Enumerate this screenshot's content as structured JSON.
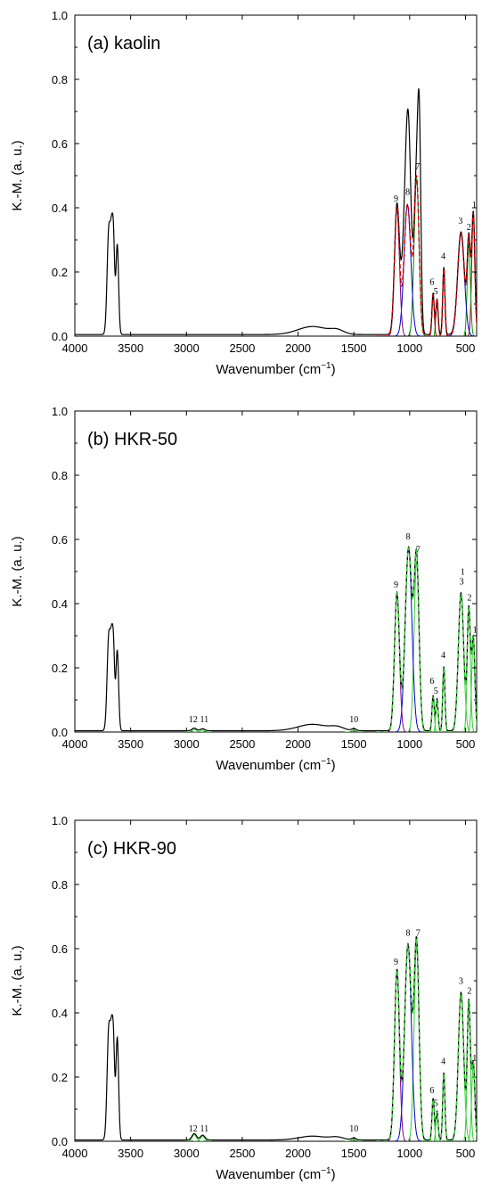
{
  "chart_data": [
    {
      "type": "line",
      "title": "(a) kaolin",
      "xlabel": "Wavenumber (cm",
      "xlabel_sup": "−1",
      "xlabel_end": ")",
      "ylabel": "K.-M. (a. u.)",
      "xlim": [
        4000,
        400
      ],
      "ylim": [
        0,
        1.0
      ],
      "xticks": [
        4000,
        3500,
        3000,
        2500,
        2000,
        1500,
        1000,
        500
      ],
      "yticks": [
        "0.0",
        "0.2",
        "0.4",
        "0.6",
        "0.8",
        "1.0"
      ],
      "grid": false,
      "measured": {
        "name": "",
        "color": "#000000",
        "baseline": 0.005,
        "peaks": [
          [
            3696,
            0.32,
            15
          ],
          [
            3669,
            0.26,
            12
          ],
          [
            3652,
            0.22,
            10
          ],
          [
            3620,
            0.28,
            12
          ],
          [
            1870,
            0.025,
            130
          ],
          [
            1650,
            0.012,
            60
          ],
          [
            1114,
            0.4,
            22
          ],
          [
            1032,
            0.41,
            30
          ],
          [
            1008,
            0.37,
            22
          ],
          [
            938,
            0.49,
            22
          ],
          [
            913,
            0.47,
            14
          ],
          [
            790,
            0.13,
            10
          ],
          [
            755,
            0.11,
            10
          ],
          [
            694,
            0.21,
            10
          ],
          [
            540,
            0.32,
            30
          ],
          [
            470,
            0.29,
            14
          ],
          [
            430,
            0.38,
            14
          ]
        ]
      },
      "components": [
        {
          "label": "1",
          "center": 430,
          "height": 0.38,
          "width": 14,
          "color": "#8b0000"
        },
        {
          "label": "2",
          "center": 470,
          "height": 0.29,
          "width": 14,
          "color": "#00a000"
        },
        {
          "label": "3",
          "center": 540,
          "height": 0.32,
          "width": 30,
          "color": "#0000cc"
        },
        {
          "label": "4",
          "center": 694,
          "height": 0.21,
          "width": 10,
          "color": "#8b0000"
        },
        {
          "label": "5",
          "center": 755,
          "height": 0.11,
          "width": 10,
          "color": "#00a000"
        },
        {
          "label": "6",
          "center": 790,
          "height": 0.13,
          "width": 10,
          "color": "#8b0000"
        },
        {
          "label": "7",
          "center": 938,
          "height": 0.49,
          "width": 22,
          "color": "#008000"
        },
        {
          "label": "8",
          "center": 1020,
          "height": 0.41,
          "width": 30,
          "color": "#0000cc"
        },
        {
          "label": "9",
          "center": 1114,
          "height": 0.4,
          "width": 22,
          "color": "#800080"
        }
      ],
      "fit": {
        "color": "#cc0000"
      },
      "peak_labels": [
        {
          "text": "1",
          "x": 420,
          "y": 0.4
        },
        {
          "text": "2",
          "x": 470,
          "y": 0.33
        },
        {
          "text": "3",
          "x": 545,
          "y": 0.35
        },
        {
          "text": "4",
          "x": 698,
          "y": 0.24
        },
        {
          "text": "5",
          "x": 765,
          "y": 0.13
        },
        {
          "text": "6",
          "x": 800,
          "y": 0.16
        },
        {
          "text": "7",
          "x": 930,
          "y": 0.52
        },
        {
          "text": "8",
          "x": 1018,
          "y": 0.44
        },
        {
          "text": "9",
          "x": 1122,
          "y": 0.42
        }
      ]
    },
    {
      "type": "line",
      "title": "(b) HKR-50",
      "xlabel": "Wavenumber (cm",
      "xlabel_sup": "−1",
      "xlabel_end": ")",
      "ylabel": "K.-M. (a. u.)",
      "xlim": [
        4000,
        400
      ],
      "ylim": [
        0,
        1.0
      ],
      "xticks": [
        4000,
        3500,
        3000,
        2500,
        2000,
        1500,
        1000,
        500
      ],
      "yticks": [
        "0.0",
        "0.2",
        "0.4",
        "0.6",
        "0.8",
        "1.0"
      ],
      "grid": false,
      "measured": {
        "name": "",
        "color": "#000000",
        "baseline": 0.004,
        "peaks": [
          [
            3696,
            0.29,
            15
          ],
          [
            3669,
            0.23,
            12
          ],
          [
            3652,
            0.19,
            10
          ],
          [
            3620,
            0.25,
            12
          ],
          [
            2930,
            0.008,
            20
          ],
          [
            2855,
            0.006,
            20
          ],
          [
            1870,
            0.02,
            130
          ],
          [
            1650,
            0.01,
            60
          ],
          [
            1500,
            0.006,
            20
          ],
          [
            1114,
            0.43,
            22
          ],
          [
            1010,
            0.57,
            30
          ],
          [
            938,
            0.53,
            22
          ],
          [
            790,
            0.11,
            10
          ],
          [
            755,
            0.1,
            10
          ],
          [
            694,
            0.2,
            10
          ],
          [
            540,
            0.43,
            24
          ],
          [
            470,
            0.38,
            14
          ],
          [
            430,
            0.29,
            14
          ]
        ]
      },
      "components": [
        {
          "label": "1",
          "center": 430,
          "height": 0.29,
          "width": 14,
          "color": "#33cc33"
        },
        {
          "label": "2",
          "center": 470,
          "height": 0.38,
          "width": 14,
          "color": "#33cc33"
        },
        {
          "label": "3",
          "center": 540,
          "height": 0.43,
          "width": 24,
          "color": "#33cc33"
        },
        {
          "label": "4",
          "center": 694,
          "height": 0.2,
          "width": 10,
          "color": "#33cc33"
        },
        {
          "label": "5",
          "center": 755,
          "height": 0.1,
          "width": 10,
          "color": "#33cc33"
        },
        {
          "label": "6",
          "center": 790,
          "height": 0.11,
          "width": 10,
          "color": "#33cc33"
        },
        {
          "label": "7",
          "center": 938,
          "height": 0.53,
          "width": 22,
          "color": "#33cc33"
        },
        {
          "label": "8",
          "center": 1010,
          "height": 0.57,
          "width": 30,
          "color": "#0000cc"
        },
        {
          "label": "9",
          "center": 1114,
          "height": 0.43,
          "width": 22,
          "color": "#800080"
        },
        {
          "label": "10",
          "center": 1500,
          "height": 0.006,
          "width": 20,
          "color": "#33cc33"
        },
        {
          "label": "11",
          "center": 2855,
          "height": 0.006,
          "width": 20,
          "color": "#33cc33"
        },
        {
          "label": "12",
          "center": 2930,
          "height": 0.008,
          "width": 20,
          "color": "#33cc33"
        }
      ],
      "fit": {
        "color": "#33cc33"
      },
      "peak_labels": [
        {
          "text": "1",
          "x": 525,
          "y": 0.49
        },
        {
          "text": "1",
          "x": 415,
          "y": 0.31
        },
        {
          "text": "2",
          "x": 465,
          "y": 0.41
        },
        {
          "text": "3",
          "x": 535,
          "y": 0.46
        },
        {
          "text": "4",
          "x": 698,
          "y": 0.23
        },
        {
          "text": "5",
          "x": 765,
          "y": 0.12
        },
        {
          "text": "6",
          "x": 800,
          "y": 0.15
        },
        {
          "text": "7",
          "x": 925,
          "y": 0.56
        },
        {
          "text": "8",
          "x": 1015,
          "y": 0.6
        },
        {
          "text": "9",
          "x": 1122,
          "y": 0.45
        },
        {
          "text": "10",
          "x": 1500,
          "y": 0.03
        },
        {
          "text": "11",
          "x": 2840,
          "y": 0.03
        },
        {
          "text": "12",
          "x": 2940,
          "y": 0.03
        }
      ]
    },
    {
      "type": "line",
      "title": "(c) HKR-90",
      "xlabel": "Wavenumber (cm",
      "xlabel_sup": "−1",
      "xlabel_end": ")",
      "ylabel": "K.-M. (a. u.)",
      "xlim": [
        4000,
        400
      ],
      "ylim": [
        0,
        1.0
      ],
      "xticks": [
        4000,
        3500,
        3000,
        2500,
        2000,
        1500,
        1000,
        500
      ],
      "yticks": [
        "0.0",
        "0.2",
        "0.4",
        "0.6",
        "0.8",
        "1.0"
      ],
      "grid": false,
      "measured": {
        "name": "",
        "color": "#000000",
        "baseline": 0.004,
        "peaks": [
          [
            3696,
            0.34,
            15
          ],
          [
            3669,
            0.27,
            12
          ],
          [
            3652,
            0.22,
            10
          ],
          [
            3620,
            0.32,
            12
          ],
          [
            2930,
            0.02,
            20
          ],
          [
            2855,
            0.015,
            20
          ],
          [
            1870,
            0.012,
            120
          ],
          [
            1650,
            0.008,
            60
          ],
          [
            1500,
            0.006,
            20
          ],
          [
            1114,
            0.53,
            22
          ],
          [
            1015,
            0.61,
            30
          ],
          [
            938,
            0.61,
            22
          ],
          [
            790,
            0.13,
            10
          ],
          [
            755,
            0.09,
            10
          ],
          [
            694,
            0.21,
            10
          ],
          [
            540,
            0.46,
            24
          ],
          [
            470,
            0.43,
            14
          ],
          [
            430,
            0.24,
            14
          ]
        ]
      },
      "components": [
        {
          "label": "1",
          "center": 430,
          "height": 0.24,
          "width": 14,
          "color": "#33cc33"
        },
        {
          "label": "2",
          "center": 470,
          "height": 0.43,
          "width": 14,
          "color": "#33cc33"
        },
        {
          "label": "3",
          "center": 540,
          "height": 0.46,
          "width": 24,
          "color": "#33cc33"
        },
        {
          "label": "4",
          "center": 694,
          "height": 0.21,
          "width": 10,
          "color": "#33cc33"
        },
        {
          "label": "5",
          "center": 755,
          "height": 0.09,
          "width": 10,
          "color": "#33cc33"
        },
        {
          "label": "6",
          "center": 790,
          "height": 0.13,
          "width": 10,
          "color": "#33cc33"
        },
        {
          "label": "7",
          "center": 938,
          "height": 0.61,
          "width": 22,
          "color": "#33cc33"
        },
        {
          "label": "8",
          "center": 1015,
          "height": 0.61,
          "width": 30,
          "color": "#0000cc"
        },
        {
          "label": "9",
          "center": 1114,
          "height": 0.53,
          "width": 22,
          "color": "#800080"
        },
        {
          "label": "10",
          "center": 1500,
          "height": 0.006,
          "width": 20,
          "color": "#33cc33"
        },
        {
          "label": "11",
          "center": 2855,
          "height": 0.015,
          "width": 20,
          "color": "#33cc33"
        },
        {
          "label": "12",
          "center": 2930,
          "height": 0.02,
          "width": 20,
          "color": "#33cc33"
        }
      ],
      "fit": {
        "color": "#33cc33"
      },
      "peak_labels": [
        {
          "text": "1",
          "x": 418,
          "y": 0.25
        },
        {
          "text": "2",
          "x": 465,
          "y": 0.46
        },
        {
          "text": "3",
          "x": 540,
          "y": 0.49
        },
        {
          "text": "4",
          "x": 698,
          "y": 0.24
        },
        {
          "text": "5",
          "x": 765,
          "y": 0.11
        },
        {
          "text": "6",
          "x": 800,
          "y": 0.15
        },
        {
          "text": "7",
          "x": 925,
          "y": 0.64
        },
        {
          "text": "8",
          "x": 1015,
          "y": 0.64
        },
        {
          "text": "9",
          "x": 1122,
          "y": 0.55
        },
        {
          "text": "10",
          "x": 1500,
          "y": 0.03
        },
        {
          "text": "11",
          "x": 2840,
          "y": 0.03
        },
        {
          "text": "12",
          "x": 2940,
          "y": 0.03
        }
      ]
    }
  ]
}
